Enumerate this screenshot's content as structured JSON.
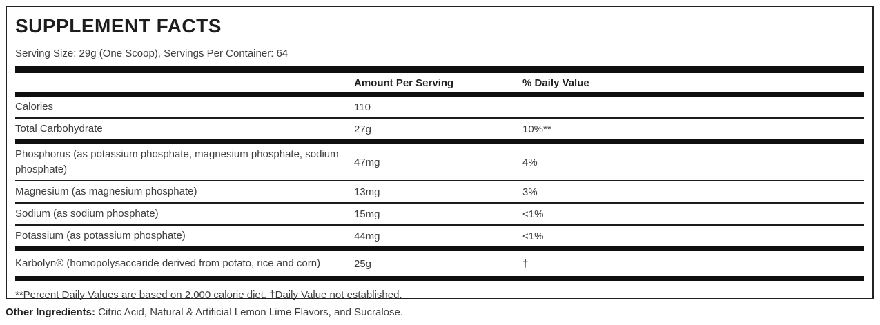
{
  "panel": {
    "title": "SUPPLEMENT FACTS",
    "serving_line": "Serving Size: 29g (One Scoop), Servings Per Container: 64",
    "columns": {
      "amount": "Amount Per Serving",
      "daily_value": "% Daily Value"
    },
    "rows": [
      {
        "name": "Calories",
        "amount": "110",
        "dv": ""
      },
      {
        "name": "Total Carbohydrate",
        "amount": "27g",
        "dv": "10%**"
      },
      {
        "name": "Phosphorus (as potassium phosphate, magnesium phosphate, sodium phosphate)",
        "amount": "47mg",
        "dv": "4%"
      },
      {
        "name": "Magnesium (as magnesium phosphate)",
        "amount": "13mg",
        "dv": "3%"
      },
      {
        "name": "Sodium (as sodium phosphate)",
        "amount": "15mg",
        "dv": "<1%"
      },
      {
        "name": "Potassium (as potassium phosphate)",
        "amount": "44mg",
        "dv": "<1%"
      },
      {
        "name": "Karbolyn® (homopolysaccaride derived from potato, rice and corn)",
        "amount": "25g",
        "dv": "†"
      }
    ],
    "footnote": "**Percent Daily Values are based on 2,000 calorie diet. †Daily Value not established.",
    "other_ingredients": {
      "label": "Other Ingredients:",
      "text": " Citric Acid, Natural & Artificial Lemon Lime Flavors, and Sucralose."
    },
    "colors": {
      "bar": "#0f0f0f",
      "border": "#222222",
      "body_text": "#3d3d3d",
      "heading_text": "#1d1d1d"
    }
  }
}
